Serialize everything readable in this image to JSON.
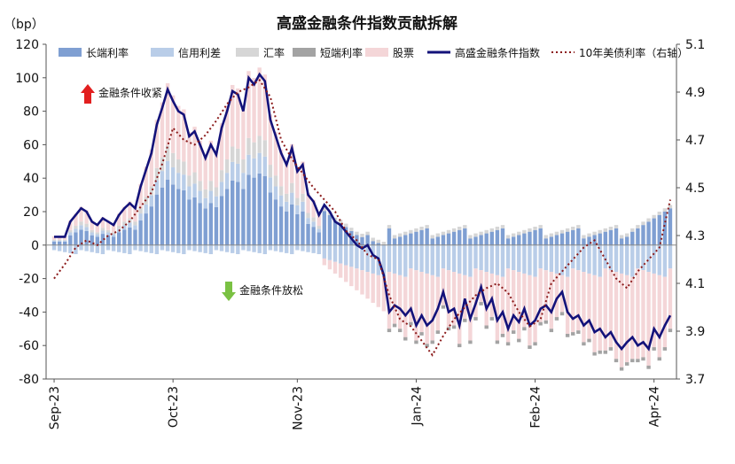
{
  "chart_data": {
    "type": "bar",
    "title": "高盛金融条件指数贡献拆解",
    "y_unit_label": "（bp）",
    "ylim": [
      -80,
      120
    ],
    "y_ticks": [
      -80,
      -60,
      -40,
      -20,
      0,
      20,
      40,
      60,
      80,
      100,
      120
    ],
    "y2lim": [
      3.7,
      5.1
    ],
    "y2_ticks": [
      "3.7",
      "3.9",
      "4.1",
      "4.3",
      "4.5",
      "4.7",
      "4.9",
      "5.1"
    ],
    "x_ticks": [
      {
        "label": "Sep-23",
        "index": 0
      },
      {
        "label": "Oct-23",
        "index": 22
      },
      {
        "label": "Nov-23",
        "index": 45
      },
      {
        "label": "Jan-24",
        "index": 67
      },
      {
        "label": "Feb-24",
        "index": 89
      },
      {
        "label": "Apr-24",
        "index": 111
      }
    ],
    "legend": [
      {
        "name": "长端利率",
        "kind": "bar",
        "color": "#7f9fd2"
      },
      {
        "name": "信用利差",
        "kind": "bar",
        "color": "#b9cde8"
      },
      {
        "name": "汇率",
        "kind": "bar",
        "color": "#d6d6d6"
      },
      {
        "name": "短端利率",
        "kind": "bar",
        "color": "#a3a3a3"
      },
      {
        "name": "股票",
        "kind": "bar",
        "color": "#f4d6d8"
      },
      {
        "name": "高盛金融条件指数",
        "kind": "line",
        "color": "#13127a"
      },
      {
        "name": "10年美债利率（右轴）",
        "kind": "dotted",
        "color": "#8b1a1a"
      }
    ],
    "annotations": {
      "up": "金融条件收紧",
      "down": "金融条件放松"
    },
    "grid": false,
    "legend_position": "top",
    "stack_order": [
      "long_rate",
      "credit_spread",
      "fx",
      "short_rate",
      "equity"
    ],
    "categories_count": 115,
    "anchors": {
      "fci": [
        [
          0,
          5
        ],
        [
          2,
          5
        ],
        [
          3,
          14
        ],
        [
          4,
          18
        ],
        [
          5,
          22
        ],
        [
          6,
          20
        ],
        [
          7,
          14
        ],
        [
          8,
          12
        ],
        [
          9,
          16
        ],
        [
          10,
          14
        ],
        [
          11,
          12
        ],
        [
          12,
          18
        ],
        [
          13,
          22
        ],
        [
          14,
          25
        ],
        [
          15,
          22
        ],
        [
          16,
          35
        ],
        [
          17,
          45
        ],
        [
          18,
          55
        ],
        [
          19,
          72
        ],
        [
          20,
          82
        ],
        [
          21,
          93
        ],
        [
          22,
          86
        ],
        [
          23,
          80
        ],
        [
          24,
          78
        ],
        [
          25,
          65
        ],
        [
          26,
          68
        ],
        [
          27,
          60
        ],
        [
          28,
          52
        ],
        [
          29,
          60
        ],
        [
          30,
          54
        ],
        [
          31,
          70
        ],
        [
          32,
          80
        ],
        [
          33,
          92
        ],
        [
          34,
          90
        ],
        [
          35,
          80
        ],
        [
          36,
          100
        ],
        [
          37,
          96
        ],
        [
          38,
          102
        ],
        [
          39,
          98
        ],
        [
          40,
          75
        ],
        [
          41,
          65
        ],
        [
          42,
          55
        ],
        [
          43,
          48
        ],
        [
          44,
          58
        ],
        [
          45,
          44
        ],
        [
          46,
          48
        ],
        [
          47,
          30
        ],
        [
          48,
          26
        ],
        [
          49,
          18
        ],
        [
          50,
          24
        ],
        [
          51,
          20
        ],
        [
          52,
          14
        ],
        [
          53,
          12
        ],
        [
          54,
          8
        ],
        [
          55,
          4
        ],
        [
          56,
          0
        ],
        [
          57,
          -2
        ],
        [
          58,
          0
        ],
        [
          59,
          -6
        ],
        [
          60,
          -8
        ],
        [
          61,
          -18
        ],
        [
          62,
          -40
        ],
        [
          63,
          -36
        ],
        [
          64,
          -38
        ],
        [
          65,
          -42
        ],
        [
          66,
          -38
        ],
        [
          67,
          -48
        ],
        [
          68,
          -42
        ],
        [
          69,
          -48
        ],
        [
          70,
          -45
        ],
        [
          71,
          -38
        ],
        [
          72,
          -28
        ],
        [
          73,
          -40
        ],
        [
          74,
          -38
        ],
        [
          75,
          -48
        ],
        [
          76,
          -32
        ],
        [
          77,
          -44
        ],
        [
          78,
          -35
        ],
        [
          79,
          -25
        ],
        [
          80,
          -38
        ],
        [
          81,
          -32
        ],
        [
          82,
          -45
        ],
        [
          83,
          -40
        ],
        [
          84,
          -50
        ],
        [
          85,
          -42
        ],
        [
          86,
          -46
        ],
        [
          87,
          -38
        ],
        [
          88,
          -48
        ],
        [
          89,
          -45
        ],
        [
          90,
          -38
        ],
        [
          91,
          -36
        ],
        [
          92,
          -40
        ],
        [
          93,
          -32
        ],
        [
          94,
          -28
        ],
        [
          95,
          -40
        ],
        [
          96,
          -44
        ],
        [
          97,
          -42
        ],
        [
          98,
          -48
        ],
        [
          99,
          -45
        ],
        [
          100,
          -52
        ],
        [
          101,
          -50
        ],
        [
          102,
          -55
        ],
        [
          103,
          -52
        ],
        [
          104,
          -58
        ],
        [
          105,
          -62
        ],
        [
          106,
          -58
        ],
        [
          107,
          -55
        ],
        [
          108,
          -60
        ],
        [
          109,
          -58
        ],
        [
          110,
          -62
        ],
        [
          111,
          -50
        ],
        [
          112,
          -55
        ],
        [
          113,
          -48
        ],
        [
          114,
          -42
        ]
      ],
      "ust10y": [
        [
          0,
          4.12
        ],
        [
          2,
          4.18
        ],
        [
          4,
          4.25
        ],
        [
          6,
          4.28
        ],
        [
          8,
          4.26
        ],
        [
          10,
          4.3
        ],
        [
          12,
          4.32
        ],
        [
          14,
          4.36
        ],
        [
          16,
          4.42
        ],
        [
          18,
          4.48
        ],
        [
          20,
          4.6
        ],
        [
          22,
          4.75
        ],
        [
          24,
          4.7
        ],
        [
          26,
          4.68
        ],
        [
          28,
          4.72
        ],
        [
          30,
          4.78
        ],
        [
          32,
          4.85
        ],
        [
          34,
          4.9
        ],
        [
          36,
          4.92
        ],
        [
          38,
          4.95
        ],
        [
          40,
          4.88
        ],
        [
          42,
          4.7
        ],
        [
          44,
          4.62
        ],
        [
          46,
          4.56
        ],
        [
          48,
          4.5
        ],
        [
          50,
          4.45
        ],
        [
          52,
          4.4
        ],
        [
          54,
          4.32
        ],
        [
          56,
          4.28
        ],
        [
          58,
          4.22
        ],
        [
          60,
          4.2
        ],
        [
          62,
          4.05
        ],
        [
          64,
          3.95
        ],
        [
          66,
          3.92
        ],
        [
          68,
          3.86
        ],
        [
          70,
          3.8
        ],
        [
          72,
          3.88
        ],
        [
          74,
          3.95
        ],
        [
          76,
          4.0
        ],
        [
          78,
          4.05
        ],
        [
          80,
          4.08
        ],
        [
          82,
          4.1
        ],
        [
          84,
          4.06
        ],
        [
          86,
          3.98
        ],
        [
          88,
          3.92
        ],
        [
          90,
          3.95
        ],
        [
          92,
          4.1
        ],
        [
          94,
          4.15
        ],
        [
          96,
          4.2
        ],
        [
          98,
          4.25
        ],
        [
          100,
          4.28
        ],
        [
          102,
          4.2
        ],
        [
          104,
          4.12
        ],
        [
          106,
          4.08
        ],
        [
          108,
          4.15
        ],
        [
          110,
          4.2
        ],
        [
          112,
          4.25
        ],
        [
          113,
          4.35
        ],
        [
          114,
          4.45
        ],
        [
          115,
          4.55
        ],
        [
          116,
          4.6
        ]
      ]
    }
  }
}
